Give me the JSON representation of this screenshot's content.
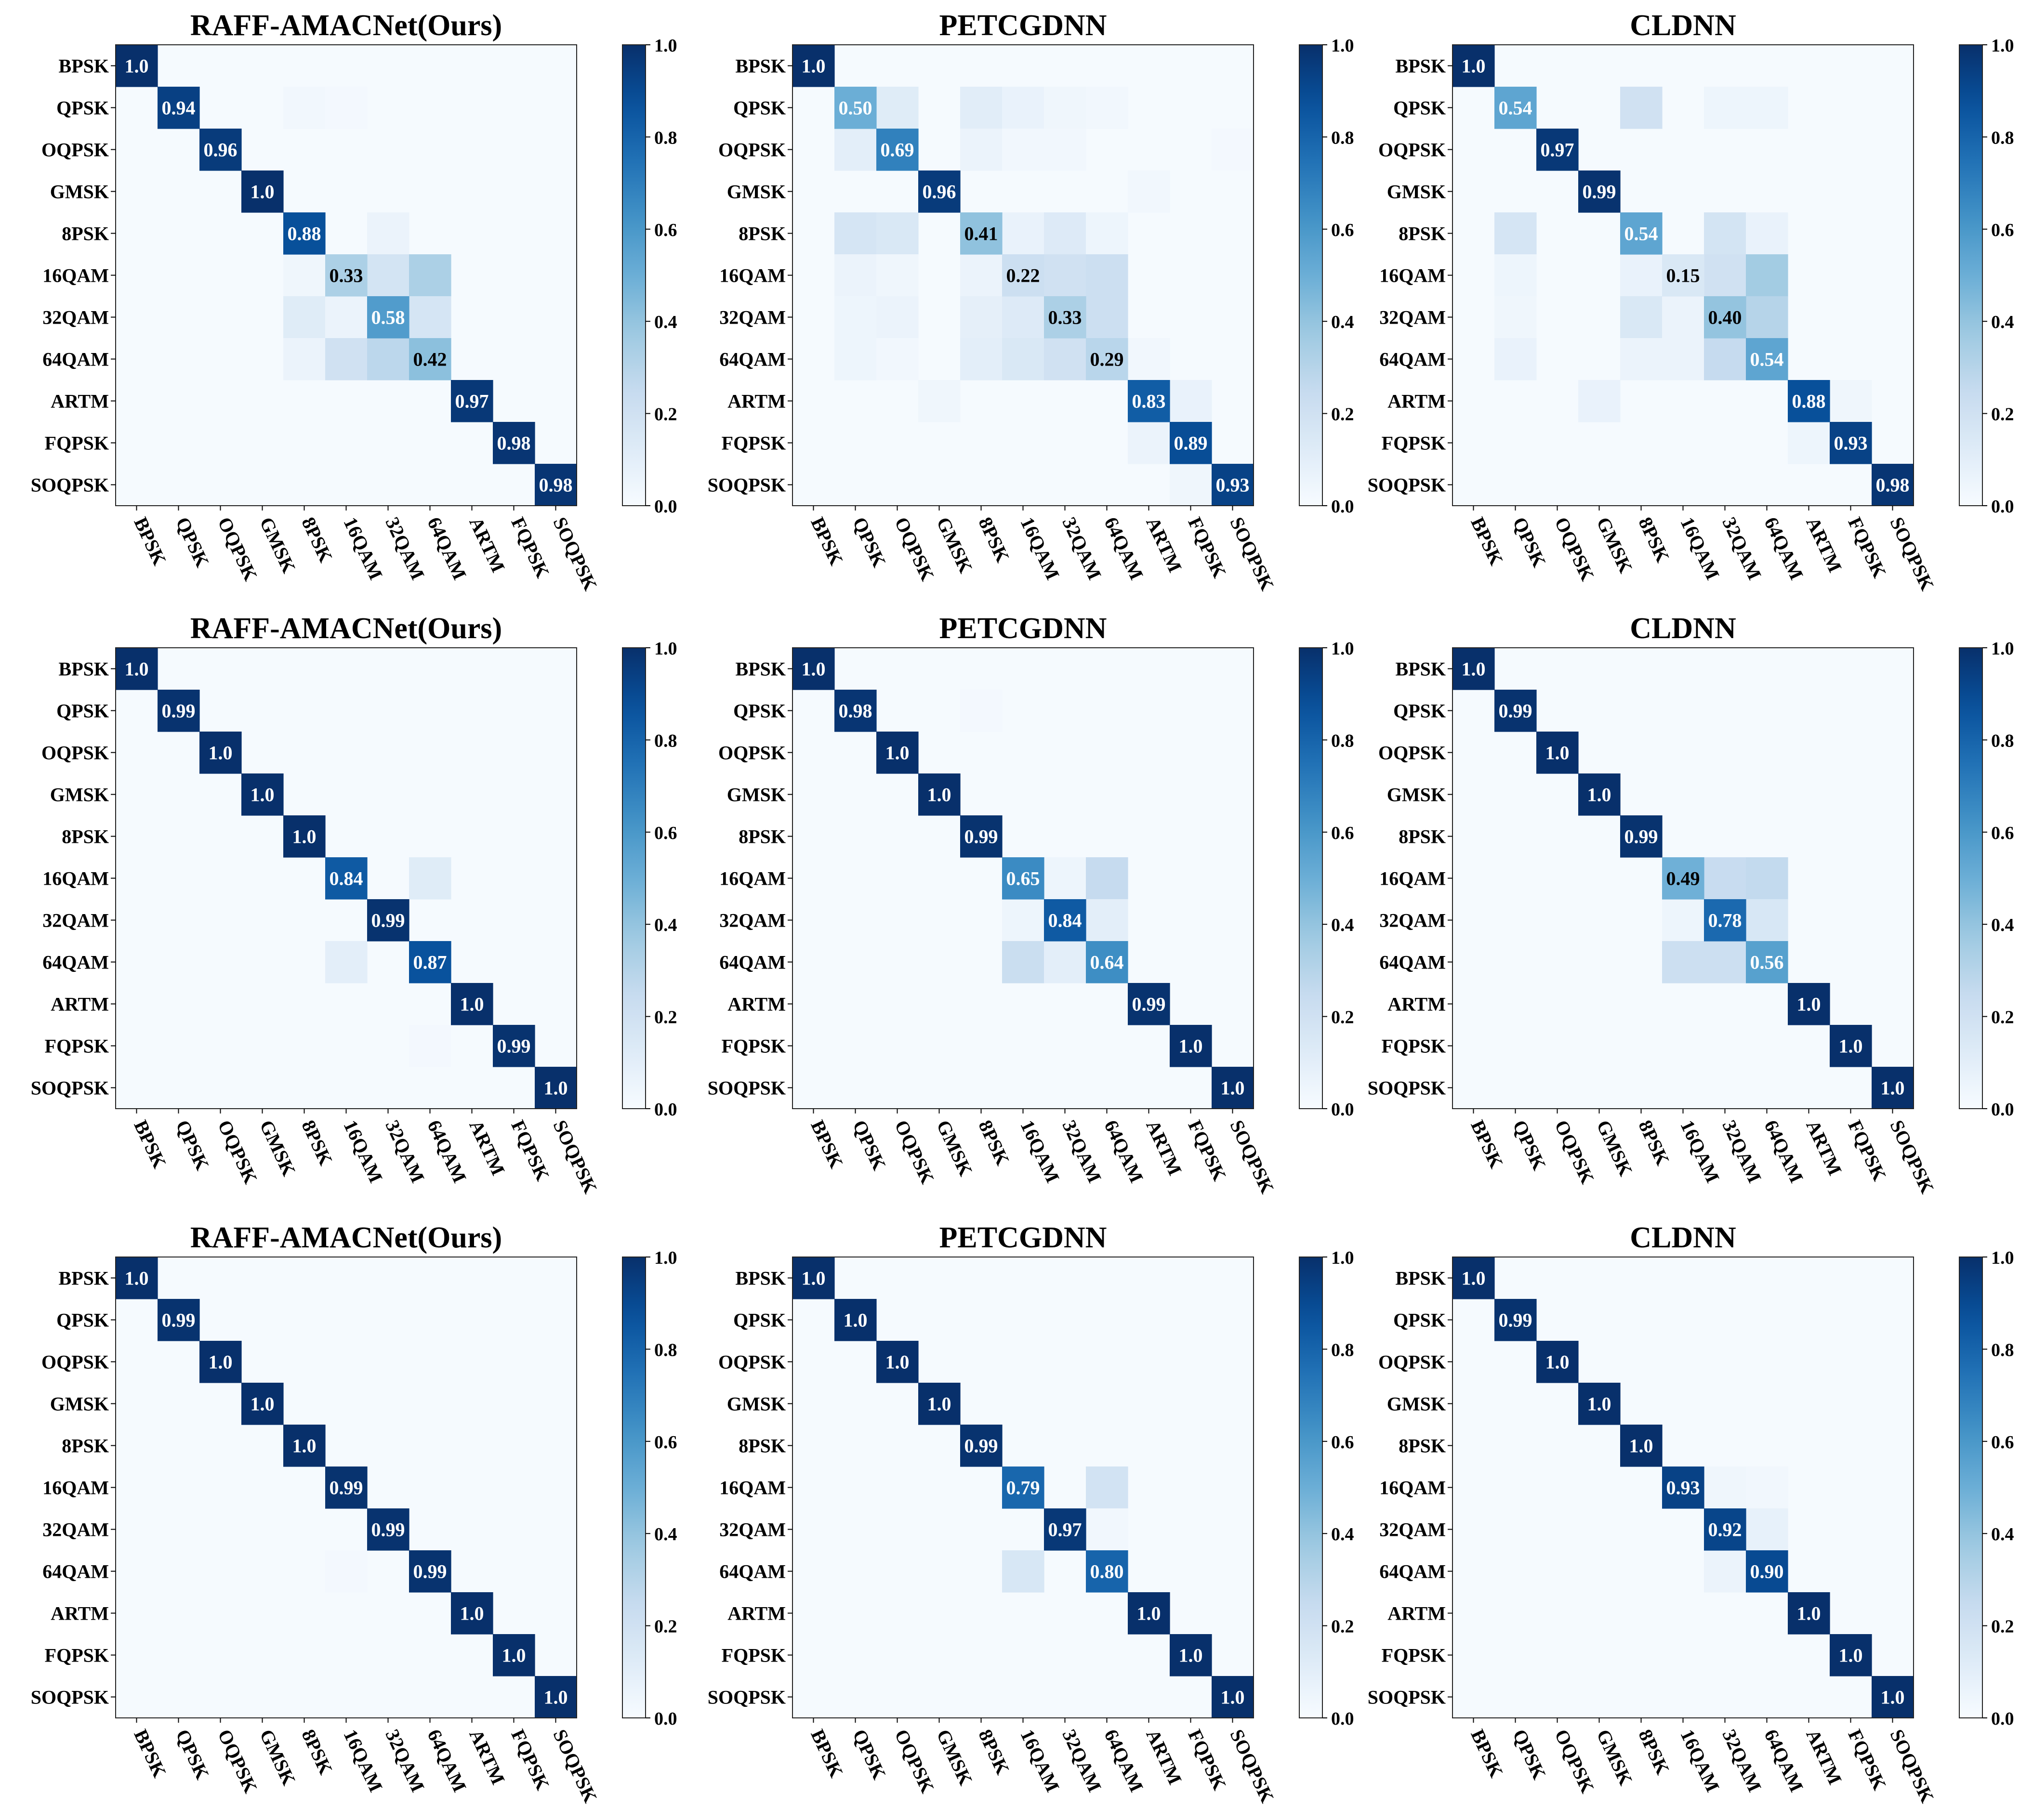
{
  "classes": [
    "BPSK",
    "QPSK",
    "OQPSK",
    "GMSK",
    "8PSK",
    "16QAM",
    "32QAM",
    "64QAM",
    "ARTM",
    "FQPSK",
    "SOQPSK"
  ],
  "colorbar_ticks": [
    "0.0",
    "0.2",
    "0.4",
    "0.6",
    "0.8",
    "1.0"
  ],
  "colors": {
    "low": "#f7fbff",
    "mid": "#6baed6",
    "high": "#08306b",
    "frame": "#222222"
  },
  "chart_data": [
    {
      "type": "heatmap",
      "title": "RAFF-AMACNet(Ours)",
      "value_range": [
        0,
        1
      ],
      "diagonal": [
        "1.0",
        "0.94",
        "0.96",
        "1.0",
        "0.88",
        "0.33",
        "0.58",
        "0.42",
        "0.97",
        "0.98",
        "0.98"
      ],
      "off_diagonal": [
        {
          "r": 1,
          "c": 4,
          "v": 0.03
        },
        {
          "r": 1,
          "c": 5,
          "v": 0.02
        },
        {
          "r": 4,
          "c": 6,
          "v": 0.06
        },
        {
          "r": 5,
          "c": 4,
          "v": 0.04
        },
        {
          "r": 5,
          "c": 6,
          "v": 0.18
        },
        {
          "r": 5,
          "c": 7,
          "v": 0.33
        },
        {
          "r": 6,
          "c": 4,
          "v": 0.12
        },
        {
          "r": 6,
          "c": 5,
          "v": 0.06
        },
        {
          "r": 6,
          "c": 7,
          "v": 0.17
        },
        {
          "r": 7,
          "c": 4,
          "v": 0.06
        },
        {
          "r": 7,
          "c": 5,
          "v": 0.2
        },
        {
          "r": 7,
          "c": 6,
          "v": 0.28
        }
      ]
    },
    {
      "type": "heatmap",
      "title": "PETCGDNN",
      "value_range": [
        0,
        1
      ],
      "diagonal": [
        "1.0",
        "0.50",
        "0.69",
        "0.96",
        "0.41",
        "0.22",
        "0.33",
        "0.29",
        "0.83",
        "0.89",
        "0.93"
      ],
      "off_diagonal": [
        {
          "r": 1,
          "c": 2,
          "v": 0.12
        },
        {
          "r": 1,
          "c": 4,
          "v": 0.11
        },
        {
          "r": 1,
          "c": 5,
          "v": 0.07
        },
        {
          "r": 1,
          "c": 6,
          "v": 0.04
        },
        {
          "r": 1,
          "c": 7,
          "v": 0.03
        },
        {
          "r": 2,
          "c": 1,
          "v": 0.1
        },
        {
          "r": 2,
          "c": 4,
          "v": 0.06
        },
        {
          "r": 2,
          "c": 5,
          "v": 0.03
        },
        {
          "r": 2,
          "c": 6,
          "v": 0.03
        },
        {
          "r": 2,
          "c": 10,
          "v": 0.02
        },
        {
          "r": 3,
          "c": 8,
          "v": 0.03
        },
        {
          "r": 4,
          "c": 1,
          "v": 0.17
        },
        {
          "r": 4,
          "c": 2,
          "v": 0.15
        },
        {
          "r": 4,
          "c": 5,
          "v": 0.07
        },
        {
          "r": 4,
          "c": 6,
          "v": 0.13
        },
        {
          "r": 4,
          "c": 7,
          "v": 0.05
        },
        {
          "r": 5,
          "c": 1,
          "v": 0.06
        },
        {
          "r": 5,
          "c": 2,
          "v": 0.04
        },
        {
          "r": 5,
          "c": 4,
          "v": 0.06
        },
        {
          "r": 5,
          "c": 6,
          "v": 0.2
        },
        {
          "r": 5,
          "c": 7,
          "v": 0.22
        },
        {
          "r": 6,
          "c": 1,
          "v": 0.05
        },
        {
          "r": 6,
          "c": 2,
          "v": 0.06
        },
        {
          "r": 6,
          "c": 4,
          "v": 0.09
        },
        {
          "r": 6,
          "c": 5,
          "v": 0.13
        },
        {
          "r": 6,
          "c": 7,
          "v": 0.22
        },
        {
          "r": 7,
          "c": 1,
          "v": 0.05
        },
        {
          "r": 7,
          "c": 2,
          "v": 0.03
        },
        {
          "r": 7,
          "c": 4,
          "v": 0.1
        },
        {
          "r": 7,
          "c": 5,
          "v": 0.15
        },
        {
          "r": 7,
          "c": 6,
          "v": 0.2
        },
        {
          "r": 7,
          "c": 8,
          "v": 0.03
        },
        {
          "r": 8,
          "c": 3,
          "v": 0.04
        },
        {
          "r": 8,
          "c": 9,
          "v": 0.07
        },
        {
          "r": 9,
          "c": 8,
          "v": 0.06
        },
        {
          "r": 10,
          "c": 9,
          "v": 0.04
        }
      ]
    },
    {
      "type": "heatmap",
      "title": "CLDNN",
      "value_range": [
        0,
        1
      ],
      "diagonal": [
        "1.0",
        "0.54",
        "0.97",
        "0.99",
        "0.54",
        "0.15",
        "0.40",
        "0.54",
        "0.88",
        "0.93",
        "0.98"
      ],
      "off_diagonal": [
        {
          "r": 1,
          "c": 4,
          "v": 0.2
        },
        {
          "r": 1,
          "c": 6,
          "v": 0.05
        },
        {
          "r": 1,
          "c": 7,
          "v": 0.05
        },
        {
          "r": 4,
          "c": 1,
          "v": 0.17
        },
        {
          "r": 4,
          "c": 6,
          "v": 0.18
        },
        {
          "r": 4,
          "c": 7,
          "v": 0.07
        },
        {
          "r": 5,
          "c": 1,
          "v": 0.05
        },
        {
          "r": 5,
          "c": 4,
          "v": 0.07
        },
        {
          "r": 5,
          "c": 6,
          "v": 0.2
        },
        {
          "r": 5,
          "c": 7,
          "v": 0.36
        },
        {
          "r": 6,
          "c": 1,
          "v": 0.04
        },
        {
          "r": 6,
          "c": 4,
          "v": 0.15
        },
        {
          "r": 6,
          "c": 5,
          "v": 0.06
        },
        {
          "r": 6,
          "c": 7,
          "v": 0.3
        },
        {
          "r": 7,
          "c": 1,
          "v": 0.07
        },
        {
          "r": 7,
          "c": 4,
          "v": 0.06
        },
        {
          "r": 7,
          "c": 5,
          "v": 0.06
        },
        {
          "r": 7,
          "c": 6,
          "v": 0.25
        },
        {
          "r": 8,
          "c": 3,
          "v": 0.07
        },
        {
          "r": 8,
          "c": 9,
          "v": 0.04
        },
        {
          "r": 9,
          "c": 8,
          "v": 0.05
        }
      ]
    },
    {
      "type": "heatmap",
      "title": "RAFF-AMACNet(Ours)",
      "value_range": [
        0,
        1
      ],
      "diagonal": [
        "1.0",
        "0.99",
        "1.0",
        "1.0",
        "1.0",
        "0.84",
        "0.99",
        "0.87",
        "1.0",
        "0.99",
        "1.0"
      ],
      "off_diagonal": [
        {
          "r": 5,
          "c": 7,
          "v": 0.12
        },
        {
          "r": 7,
          "c": 5,
          "v": 0.1
        },
        {
          "r": 9,
          "c": 7,
          "v": 0.02
        }
      ]
    },
    {
      "type": "heatmap",
      "title": "PETCGDNN",
      "value_range": [
        0,
        1
      ],
      "diagonal": [
        "1.0",
        "0.98",
        "1.0",
        "1.0",
        "0.99",
        "0.65",
        "0.84",
        "0.64",
        "0.99",
        "1.0",
        "1.0"
      ],
      "off_diagonal": [
        {
          "r": 1,
          "c": 4,
          "v": 0.02
        },
        {
          "r": 5,
          "c": 6,
          "v": 0.05
        },
        {
          "r": 5,
          "c": 7,
          "v": 0.25
        },
        {
          "r": 6,
          "c": 5,
          "v": 0.05
        },
        {
          "r": 6,
          "c": 7,
          "v": 0.1
        },
        {
          "r": 7,
          "c": 5,
          "v": 0.23
        },
        {
          "r": 7,
          "c": 6,
          "v": 0.1
        }
      ]
    },
    {
      "type": "heatmap",
      "title": "CLDNN",
      "value_range": [
        0,
        1
      ],
      "diagonal": [
        "1.0",
        "0.99",
        "1.0",
        "1.0",
        "0.99",
        "0.49",
        "0.78",
        "0.56",
        "1.0",
        "1.0",
        "1.0"
      ],
      "off_diagonal": [
        {
          "r": 5,
          "c": 6,
          "v": 0.24
        },
        {
          "r": 5,
          "c": 7,
          "v": 0.26
        },
        {
          "r": 6,
          "c": 5,
          "v": 0.05
        },
        {
          "r": 6,
          "c": 7,
          "v": 0.16
        },
        {
          "r": 7,
          "c": 5,
          "v": 0.22
        },
        {
          "r": 7,
          "c": 6,
          "v": 0.22
        }
      ]
    },
    {
      "type": "heatmap",
      "title": "RAFF-AMACNet(Ours)",
      "value_range": [
        0,
        1
      ],
      "diagonal": [
        "1.0",
        "0.99",
        "1.0",
        "1.0",
        "1.0",
        "0.99",
        "0.99",
        "0.99",
        "1.0",
        "1.0",
        "1.0"
      ],
      "off_diagonal": [
        {
          "r": 7,
          "c": 5,
          "v": 0.02
        }
      ]
    },
    {
      "type": "heatmap",
      "title": "PETCGDNN",
      "value_range": [
        0,
        1
      ],
      "diagonal": [
        "1.0",
        "1.0",
        "1.0",
        "1.0",
        "0.99",
        "0.79",
        "0.97",
        "0.80",
        "1.0",
        "1.0",
        "1.0"
      ],
      "off_diagonal": [
        {
          "r": 5,
          "c": 7,
          "v": 0.19
        },
        {
          "r": 6,
          "c": 7,
          "v": 0.03
        },
        {
          "r": 7,
          "c": 5,
          "v": 0.16
        }
      ]
    },
    {
      "type": "heatmap",
      "title": "CLDNN",
      "value_range": [
        0,
        1
      ],
      "diagonal": [
        "1.0",
        "0.99",
        "1.0",
        "1.0",
        "1.0",
        "0.93",
        "0.92",
        "0.90",
        "1.0",
        "1.0",
        "1.0"
      ],
      "off_diagonal": [
        {
          "r": 5,
          "c": 6,
          "v": 0.04
        },
        {
          "r": 5,
          "c": 7,
          "v": 0.03
        },
        {
          "r": 6,
          "c": 7,
          "v": 0.08
        },
        {
          "r": 7,
          "c": 6,
          "v": 0.06
        }
      ]
    }
  ]
}
